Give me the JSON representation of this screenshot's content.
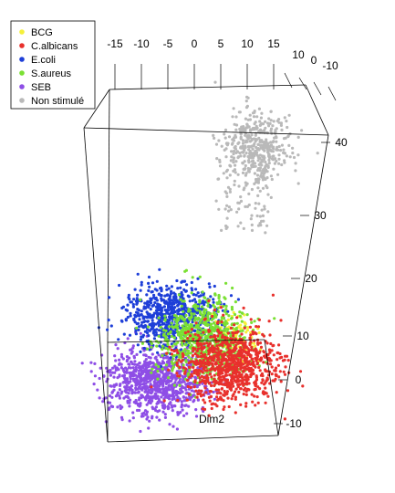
{
  "chart_data": {
    "type": "scatter",
    "projection": "3d",
    "xlabel": "",
    "ylabel": "Dim2",
    "zlabel": "",
    "x_ticks": [
      "-15",
      "-10",
      "-5",
      "0",
      "5",
      "10",
      "15"
    ],
    "y_ticks": [
      "10",
      "0",
      "-10"
    ],
    "z_ticks": [
      "-10",
      "0",
      "10",
      "20",
      "30",
      "40"
    ],
    "xlim": [
      -18,
      18
    ],
    "ylim": [
      -12,
      12
    ],
    "zlim": [
      -12,
      40
    ],
    "legend_position": "top-left",
    "series": [
      {
        "name": "BCG",
        "color": "#f5f03a",
        "points": 120
      },
      {
        "name": "C.albicans",
        "color": "#e8302c",
        "points": 900
      },
      {
        "name": "E.coli",
        "color": "#1e3fd8",
        "points": 700
      },
      {
        "name": "S.aureus",
        "color": "#7ae033",
        "points": 700
      },
      {
        "name": "SEB",
        "color": "#8e4ee6",
        "points": 900
      },
      {
        "name": "Non stimulé",
        "color": "#b9b9b9",
        "points": 500
      }
    ]
  }
}
